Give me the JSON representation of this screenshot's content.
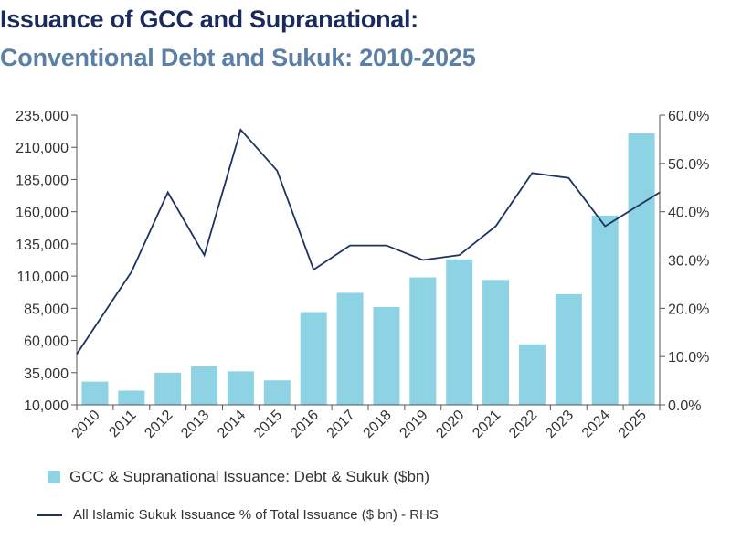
{
  "chart_data": {
    "type": "bar",
    "title": "Issuance of GCC and Supranational:",
    "subtitle": "Conventional Debt and Sukuk: 2010-2025",
    "categories": [
      "2010",
      "2011",
      "2012",
      "2013",
      "2014",
      "2015",
      "2016",
      "2017",
      "2018",
      "2019",
      "2020",
      "2021",
      "2022",
      "2023",
      "2024",
      "2025"
    ],
    "series": [
      {
        "name": "GCC & Supranational Issuance: Debt & Sukuk ($bn)",
        "type": "bar",
        "axis": "left",
        "values": [
          28000,
          21000,
          35000,
          40000,
          36000,
          29000,
          82000,
          97000,
          86000,
          109000,
          123000,
          107000,
          57000,
          96000,
          157000,
          221000
        ]
      },
      {
        "name": "All Islamic Sukuk Issuance % of Total Issuance ($ bn) - RHS",
        "type": "line",
        "axis": "right",
        "values": [
          10.5,
          27.5,
          44,
          31,
          57,
          48.5,
          28,
          33,
          33,
          30,
          31,
          37,
          48,
          47,
          37,
          44
        ]
      }
    ],
    "y_left": {
      "min": 10000,
      "max": 235000,
      "ticks": [
        "235,000",
        "210,000",
        "185,000",
        "160,000",
        "135,000",
        "110,000",
        "85,000",
        "60,000",
        "35,000",
        "10,000"
      ]
    },
    "y_right": {
      "min": 0,
      "max": 60,
      "ticks": [
        "60.0%",
        "50.0%",
        "40.0%",
        "30.0%",
        "20.0%",
        "10.0%",
        "0.0%"
      ]
    },
    "grid": false,
    "legend": "bottom",
    "colors": {
      "bar": "#8dd3e3",
      "line": "#1d3361",
      "axis": "#555555"
    }
  }
}
